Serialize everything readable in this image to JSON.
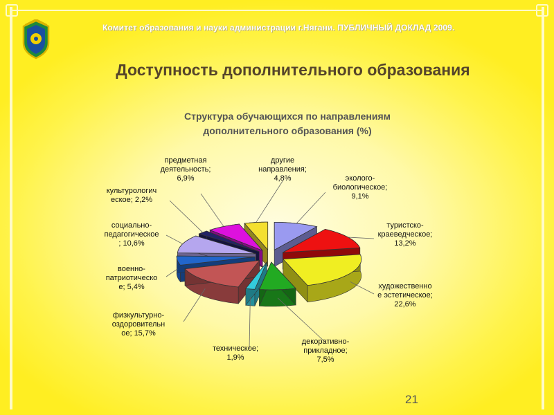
{
  "header": {
    "org_text": "Комитет образования и науки администрации г.Нягани. ПУБЛИЧНЫЙ ДОКЛАД 2009.",
    "slide_title": "Доступность дополнительного образования"
  },
  "page_number": "21",
  "colors": {
    "background": "#fff34a",
    "title": "#55442a"
  },
  "chart_data": {
    "type": "pie",
    "title": [
      "Структура обучающихся по направлениям",
      "дополнительного образования (%)"
    ],
    "slices": [
      {
        "name": "эколого-биологическое",
        "value": 9.1,
        "color": "#9a9af0"
      },
      {
        "name": "туристско-краеведческое",
        "value": 13.2,
        "color": "#ee1111"
      },
      {
        "name": "художественно-эстетическое",
        "value": 22.6,
        "color": "#f0ee22"
      },
      {
        "name": "декоративно-прикладное",
        "value": 7.5,
        "color": "#22aa22"
      },
      {
        "name": "техническое",
        "value": 1.9,
        "color": "#33ccdd"
      },
      {
        "name": "физкультурно-оздоровительное",
        "value": 15.7,
        "color": "#c25555"
      },
      {
        "name": "военно-патриотическое",
        "value": 5.4,
        "color": "#2266cc"
      },
      {
        "name": "социально-педагогическое",
        "value": 10.6,
        "color": "#b5a6ee"
      },
      {
        "name": "культурологическое",
        "value": 2.2,
        "color": "#222266"
      },
      {
        "name": "предметная деятельность",
        "value": 6.9,
        "color": "#dd11dd"
      },
      {
        "name": "другие направления",
        "value": 4.8,
        "color": "#f4e030"
      }
    ],
    "labels": [
      {
        "lines": [
          "эколого-",
          "биологическое;",
          "9,1%"
        ]
      },
      {
        "lines": [
          "туристско-",
          "краеведческое;",
          "13,2%"
        ]
      },
      {
        "lines": [
          "художественно",
          "е эстетическое;",
          "22,6%"
        ]
      },
      {
        "lines": [
          "декоративно-",
          "прикладное;",
          "7,5%"
        ]
      },
      {
        "lines": [
          "техническое;",
          "1,9%"
        ]
      },
      {
        "lines": [
          "физкультурно-",
          "оздоровительн",
          "ое; 15,7%"
        ]
      },
      {
        "lines": [
          "военно-",
          "патриотическо",
          "е; 5,4%"
        ]
      },
      {
        "lines": [
          "социально-",
          "педагогическое",
          "; 10,6%"
        ]
      },
      {
        "lines": [
          "культурологич",
          "еское; 2,2%"
        ]
      },
      {
        "lines": [
          "предметная",
          "деятельность;",
          "6,9%"
        ]
      },
      {
        "lines": [
          "другие",
          "направления;",
          "4,8%"
        ]
      }
    ]
  }
}
